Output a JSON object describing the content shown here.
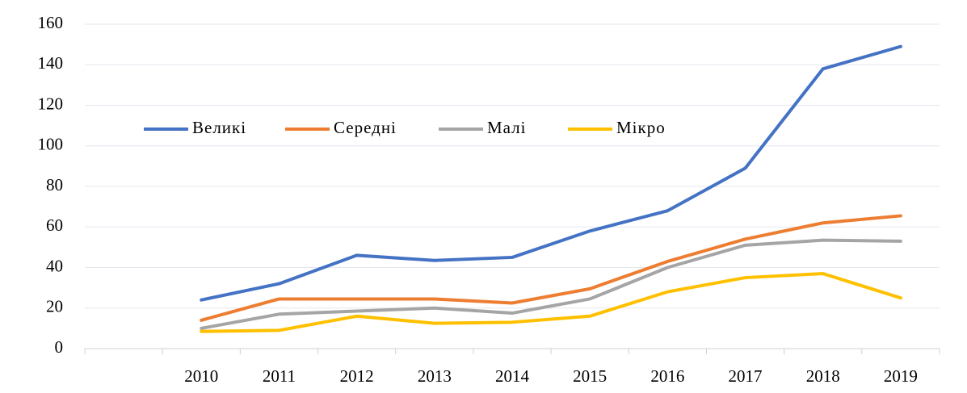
{
  "chart_data": {
    "type": "line",
    "categories": [
      null,
      "2010",
      "2011",
      "2012",
      "2013",
      "2014",
      "2015",
      "2016",
      "2017",
      "2018",
      "2019"
    ],
    "series": [
      {
        "name": "Великі",
        "color": "#4472c4",
        "values": [
          null,
          24,
          32,
          46,
          43.5,
          45,
          58,
          68,
          89,
          138,
          149
        ]
      },
      {
        "name": "Середні",
        "color": "#ed7d31",
        "values": [
          null,
          14,
          24.5,
          24.5,
          24.5,
          22.5,
          29.5,
          43,
          54,
          62,
          65.5
        ]
      },
      {
        "name": "Малі",
        "color": "#a5a5a5",
        "values": [
          null,
          10,
          17,
          18.5,
          20,
          17.5,
          24.5,
          40,
          51,
          53.5,
          53
        ]
      },
      {
        "name": "Мікро",
        "color": "#ffc000",
        "values": [
          null,
          8.5,
          9,
          16,
          12.5,
          13,
          16,
          28,
          35,
          37,
          25
        ]
      }
    ],
    "ylim": [
      0,
      160
    ],
    "yticks": [
      0,
      20,
      40,
      60,
      80,
      100,
      120,
      140,
      160
    ],
    "grid": true,
    "legend": "upper left"
  }
}
